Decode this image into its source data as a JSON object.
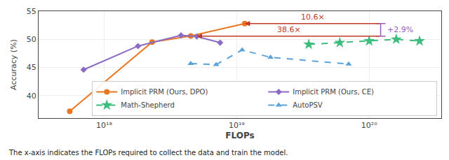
{
  "chart_data": {
    "type": "line",
    "xlabel": "FLOPs",
    "ylabel": "Accuracy (%)",
    "caption": "The x-axis indicates the FLOPs required to collect the data and train the model.",
    "log": "x",
    "grid": true,
    "legend": "lower right",
    "xlim": [
      3.2e+17,
      3.5e+20
    ],
    "xticks": [
      {
        "value": 1e+18,
        "label": "10¹⁸"
      },
      {
        "value": 1e+19,
        "label": "10¹⁹"
      },
      {
        "value": 1e+20,
        "label": "10²⁰"
      }
    ],
    "ylim": [
      36,
      55
    ],
    "yticks": [
      40,
      45,
      50,
      55
    ],
    "series": [
      {
        "name": "Implicit PRM (Ours, DPO)",
        "color": "#E87722",
        "marker": "circle",
        "line_style": "solid",
        "x": [
          5.5e+17,
          2.3e+18,
          4.5e+18,
          1.15e+19
        ],
        "values": [
          37.2,
          49.5,
          50.6,
          52.8
        ]
      },
      {
        "name": "Implicit PRM (Ours, CE)",
        "color": "#8B6BC4",
        "marker": "diamond",
        "line_style": "solid",
        "x": [
          7e+17,
          1.8e+18,
          3.8e+18,
          5e+18,
          7.5e+18
        ],
        "values": [
          44.6,
          48.8,
          50.7,
          50.5,
          49.4
        ]
      },
      {
        "name": "Math-Shepherd",
        "color": "#3DBD7D",
        "marker": "star",
        "line_style": "dashed",
        "x": [
          3.5e+19,
          6e+19,
          1e+20,
          1.6e+20,
          2.4e+20
        ],
        "values": [
          49.1,
          49.4,
          49.7,
          50.0,
          49.7
        ]
      },
      {
        "name": "AutoPSV",
        "color": "#5BA3D9",
        "marker": "triangle-up",
        "line_style": "dashed",
        "x": [
          4.5e+18,
          7e+18,
          1.1e+19,
          1.8e+19,
          7e+19
        ],
        "values": [
          45.7,
          45.5,
          48.1,
          46.8,
          45.6
        ]
      }
    ],
    "annotations": [
      {
        "text": "10.6×",
        "x": 1.15e+19,
        "x_end": 1.22e+20,
        "y": 52.8,
        "color": "#C0392B"
      },
      {
        "text": "38.6×",
        "x": 5e+18,
        "x_end": 1.22e+20,
        "y": 50.55,
        "color": "#C0392B"
      }
    ],
    "bracket": {
      "text": "+2.9%",
      "x": 1.22e+20,
      "y_bottom": 50.55,
      "y_top": 52.8,
      "color": "#9B59B6"
    }
  }
}
